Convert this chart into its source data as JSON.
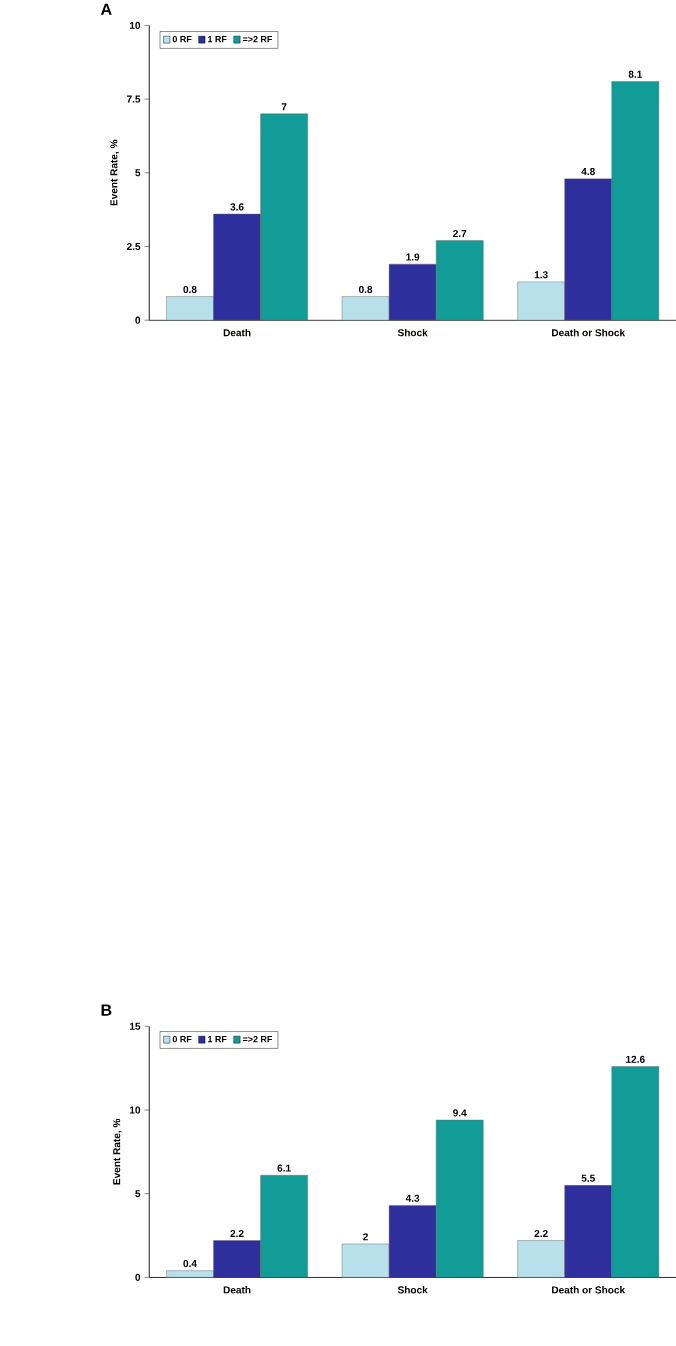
{
  "chart_data": [
    {
      "type": "bar",
      "title": "A",
      "ylabel": "Event Rate, %",
      "categories": [
        "Death",
        "Shock",
        "Death or Shock"
      ],
      "series": [
        {
          "name": "0 RF",
          "color": "#b8e0ea",
          "values": [
            0.8,
            0.8,
            1.3
          ]
        },
        {
          "name": "1 RF",
          "color": "#2e2e9c",
          "values": [
            3.6,
            1.9,
            4.8
          ]
        },
        {
          "name": "=>2 RF",
          "color": "#119c98",
          "values": [
            7,
            2.7,
            8.1
          ]
        }
      ],
      "ylim": [
        0,
        10
      ],
      "yticks": [
        0,
        2.5,
        5,
        7.5,
        10
      ],
      "data_labels": true,
      "legend": "top left"
    },
    {
      "type": "bar",
      "title": "B",
      "ylabel": "Event Rate, %",
      "categories": [
        "Death",
        "Shock",
        "Death or Shock"
      ],
      "series": [
        {
          "name": "0 RF",
          "color": "#b8e0ea",
          "values": [
            0.4,
            2,
            2.2
          ]
        },
        {
          "name": "1 RF",
          "color": "#2e2e9c",
          "values": [
            2.2,
            4.3,
            5.5
          ]
        },
        {
          "name": "=>2 RF",
          "color": "#119c98",
          "values": [
            6.1,
            9.4,
            12.6
          ]
        }
      ],
      "ylim": [
        0,
        15
      ],
      "yticks": [
        0,
        5,
        10,
        15
      ],
      "data_labels": true,
      "legend": "top left"
    }
  ]
}
